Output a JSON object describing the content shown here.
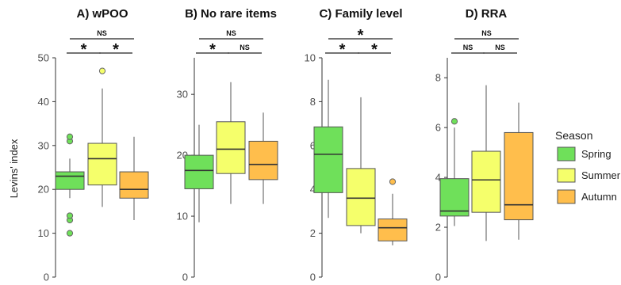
{
  "colors": {
    "Spring": "#6fe05a",
    "Summer": "#f5ff6b",
    "Autumn": "#ffbe4c",
    "box_stroke": "#555555",
    "axis": "#333333",
    "tick_text": "#4d4d4d"
  },
  "chart_data": [
    {
      "type": "box",
      "title": "A) wPOO",
      "ylabel": "Levins' index",
      "ylim": [
        0,
        50
      ],
      "yticks": [
        0,
        10,
        20,
        30,
        40,
        50
      ],
      "grid": false,
      "series": [
        {
          "name": "Spring",
          "whisker_low": 18,
          "q1": 20,
          "median": 23,
          "q3": 24,
          "whisker_high": 27,
          "outliers": [
            10,
            13,
            14,
            31,
            32
          ]
        },
        {
          "name": "Summer",
          "whisker_low": 16,
          "q1": 21,
          "median": 27,
          "q3": 30.5,
          "whisker_high": 43,
          "outliers": [
            47
          ]
        },
        {
          "name": "Autumn",
          "whisker_low": 13,
          "q1": 18,
          "median": 20,
          "q3": 24,
          "whisker_high": 32,
          "outliers": []
        }
      ],
      "significance": [
        {
          "from": "Spring",
          "to": "Autumn",
          "label": "NS"
        },
        {
          "from": "Spring",
          "to": "Summer",
          "label": "*"
        },
        {
          "from": "Summer",
          "to": "Autumn",
          "label": "*"
        }
      ]
    },
    {
      "type": "box",
      "title": "B) No rare items",
      "ylabel": "",
      "ylim": [
        0,
        36
      ],
      "yticks": [
        0,
        10,
        20,
        30
      ],
      "grid": false,
      "series": [
        {
          "name": "Spring",
          "whisker_low": 9,
          "q1": 14.5,
          "median": 17.5,
          "q3": 20,
          "whisker_high": 25,
          "outliers": []
        },
        {
          "name": "Summer",
          "whisker_low": 12,
          "q1": 17,
          "median": 21,
          "q3": 25.5,
          "whisker_high": 32,
          "outliers": []
        },
        {
          "name": "Autumn",
          "whisker_low": 12,
          "q1": 16,
          "median": 18.5,
          "q3": 22.3,
          "whisker_high": 27,
          "outliers": []
        }
      ],
      "significance": [
        {
          "from": "Spring",
          "to": "Autumn",
          "label": "NS"
        },
        {
          "from": "Spring",
          "to": "Summer",
          "label": "*"
        },
        {
          "from": "Summer",
          "to": "Autumn",
          "label": "NS"
        }
      ]
    },
    {
      "type": "box",
      "title": "C) Family level",
      "ylabel": "",
      "ylim": [
        0,
        10
      ],
      "yticks": [
        0,
        2,
        4,
        6,
        8,
        10
      ],
      "grid": false,
      "series": [
        {
          "name": "Spring",
          "whisker_low": 2.7,
          "q1": 3.85,
          "median": 5.6,
          "q3": 6.85,
          "whisker_high": 9,
          "outliers": []
        },
        {
          "name": "Summer",
          "whisker_low": 2,
          "q1": 2.35,
          "median": 3.6,
          "q3": 4.95,
          "whisker_high": 8.2,
          "outliers": []
        },
        {
          "name": "Autumn",
          "whisker_low": 1.45,
          "q1": 1.65,
          "median": 2.25,
          "q3": 2.65,
          "whisker_high": 3.8,
          "outliers": [
            4.35
          ]
        }
      ],
      "significance": [
        {
          "from": "Spring",
          "to": "Autumn",
          "label": "*"
        },
        {
          "from": "Spring",
          "to": "Summer",
          "label": "*"
        },
        {
          "from": "Summer",
          "to": "Autumn",
          "label": "*"
        }
      ]
    },
    {
      "type": "box",
      "title": "D) RRA",
      "ylabel": "",
      "ylim": [
        0,
        8.8
      ],
      "yticks": [
        0,
        2,
        4,
        6,
        8
      ],
      "grid": false,
      "series": [
        {
          "name": "Spring",
          "whisker_low": 2.05,
          "q1": 2.45,
          "median": 2.65,
          "q3": 3.95,
          "whisker_high": 6,
          "outliers": [
            6.25
          ]
        },
        {
          "name": "Summer",
          "whisker_low": 1.45,
          "q1": 2.6,
          "median": 3.9,
          "q3": 5.05,
          "whisker_high": 7.7,
          "outliers": []
        },
        {
          "name": "Autumn",
          "whisker_low": 1.5,
          "q1": 2.3,
          "median": 2.9,
          "q3": 5.8,
          "whisker_high": 7,
          "outliers": []
        }
      ],
      "significance": [
        {
          "from": "Spring",
          "to": "Autumn",
          "label": "NS"
        },
        {
          "from": "Spring",
          "to": "Summer",
          "label": "NS"
        },
        {
          "from": "Summer",
          "to": "Autumn",
          "label": "NS"
        }
      ]
    }
  ],
  "legend": {
    "title": "Season",
    "placement": "right",
    "items": [
      {
        "label": "Spring",
        "color": "#6fe05a"
      },
      {
        "label": "Summer",
        "color": "#f5ff6b"
      },
      {
        "label": "Autumn",
        "color": "#ffbe4c"
      }
    ]
  }
}
